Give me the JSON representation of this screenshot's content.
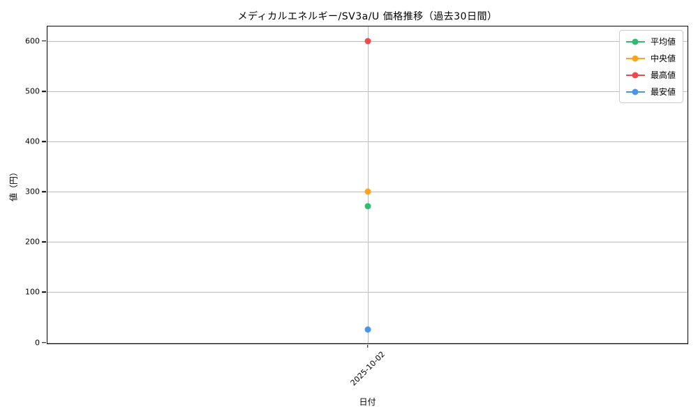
{
  "chart_data": {
    "type": "line",
    "title": "メディカルエネルギー/SV3a/U 価格推移（過去30日間）",
    "xlabel": "日付",
    "ylabel": "値（円）",
    "x": [
      "2025-10-02"
    ],
    "series": [
      {
        "key": "mean",
        "name": "平均値",
        "color": "#2ebd6e",
        "values": [
          271
        ]
      },
      {
        "key": "median",
        "name": "中央値",
        "color": "#ffa318",
        "values": [
          300
        ]
      },
      {
        "key": "max",
        "name": "最高値",
        "color": "#f4484e",
        "values": [
          600
        ]
      },
      {
        "key": "min",
        "name": "最安値",
        "color": "#4696ec",
        "values": [
          26
        ]
      }
    ],
    "yticks": [
      0,
      100,
      200,
      300,
      400,
      500,
      600
    ],
    "ylim": [
      -2,
      629
    ],
    "grid": true,
    "legend_position": "upper right",
    "grid_color": "#bdbdbd"
  }
}
